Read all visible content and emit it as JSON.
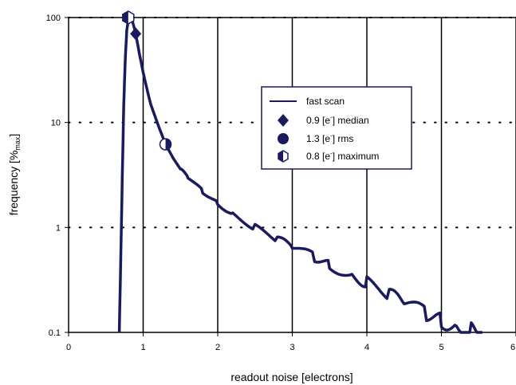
{
  "chart_data": {
    "type": "line",
    "title": "",
    "xlabel": "readout noise [electrons]",
    "ylabel_parts": [
      "frequency [%",
      "max",
      "]"
    ],
    "xlim": [
      0,
      6
    ],
    "ylim": [
      0.1,
      100
    ],
    "yscale": "log",
    "x_ticks": [
      0,
      1,
      2,
      3,
      4,
      5,
      6
    ],
    "x_tick_labels": [
      "0",
      "1",
      "2",
      "3",
      "4",
      "5",
      "6"
    ],
    "y_ticks": [
      0.1,
      1,
      10,
      100
    ],
    "y_tick_labels": [
      "0.1",
      "1",
      "10",
      "100"
    ],
    "grid": {
      "x": "solid",
      "y": "dotted"
    },
    "legend": {
      "placement": "upper-center-right",
      "entries": [
        {
          "marker": "line",
          "parts": [
            "fast scan"
          ]
        },
        {
          "marker": "diamond",
          "parts": [
            "0.9 [e",
            "-",
            "] median"
          ]
        },
        {
          "marker": "circle",
          "parts": [
            "1.3 [e",
            "-",
            "] rms"
          ]
        },
        {
          "marker": "hexagon-half",
          "parts": [
            "0.8 [e",
            "-",
            "] maximum"
          ]
        }
      ]
    },
    "series": [
      {
        "name": "fast scan",
        "x": [
          0.68,
          0.7,
          0.72,
          0.74,
          0.76,
          0.78,
          0.8,
          0.82,
          0.85,
          0.88,
          0.9,
          0.95,
          1.0,
          1.05,
          1.1,
          1.2,
          1.3,
          1.4,
          1.5,
          1.6,
          1.8,
          2.0,
          2.2,
          2.5,
          2.8,
          3.0,
          3.3,
          3.5,
          3.8,
          4.0,
          4.3,
          4.5,
          4.8,
          5.0,
          5.2,
          5.4,
          5.55
        ],
        "y": [
          0.1,
          0.5,
          3.0,
          15,
          40,
          75,
          95,
          100,
          95,
          80,
          70,
          45,
          30,
          21,
          15,
          9.5,
          6.2,
          4.6,
          3.6,
          3.0,
          2.2,
          1.7,
          1.35,
          1.0,
          0.77,
          0.65,
          0.52,
          0.44,
          0.35,
          0.3,
          0.23,
          0.19,
          0.15,
          0.13,
          0.115,
          0.105,
          0.1
        ],
        "color": "#1a1a5e"
      }
    ],
    "markers": [
      {
        "type": "diamond",
        "label": "median",
        "x": [
          0.82,
          0.9
        ],
        "y": [
          100,
          70
        ]
      },
      {
        "type": "circle",
        "label": "rms",
        "x": [
          1.3
        ],
        "y": [
          6.2
        ]
      },
      {
        "type": "hexagon-half",
        "label": "maximum",
        "x": [
          0.8
        ],
        "y": [
          100
        ]
      }
    ],
    "colors": {
      "line": "#1a1a5e",
      "marker": "#1a1a5e",
      "grid": "#000000"
    }
  }
}
